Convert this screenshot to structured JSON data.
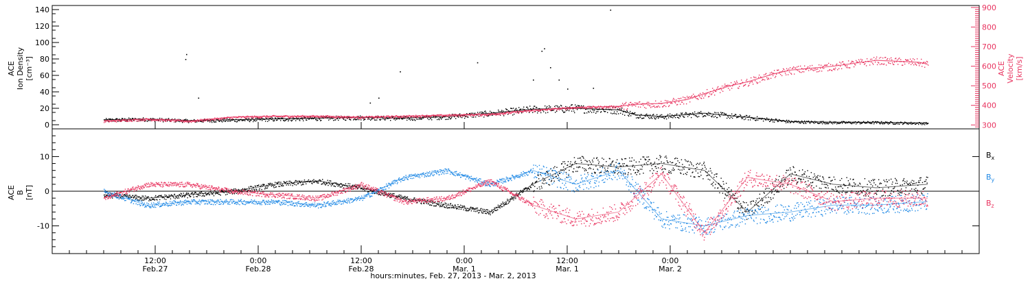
{
  "chart_data": [
    {
      "type": "scatter",
      "panel": "top",
      "ylabel_left": [
        "ACE",
        "Ion Density",
        "[cm⁻³]"
      ],
      "ylabel_right": [
        "ACE",
        "Velocity",
        "[km/s]"
      ],
      "ylim_left": [
        -5,
        145
      ],
      "ylim_right": [
        280,
        910
      ],
      "yticks_left": [
        0,
        20,
        40,
        60,
        80,
        100,
        120,
        140
      ],
      "yticks_right": [
        300,
        400,
        500,
        600,
        700,
        800,
        900
      ],
      "grid": false,
      "colors": {
        "density": "#000000",
        "velocity": "#e8335f"
      },
      "series": [
        {
          "axis": "left",
          "color": "#000000",
          "x_hours": [
            0,
            5,
            10,
            15,
            20,
            25,
            30,
            35,
            40,
            45,
            50,
            55,
            60,
            62,
            65,
            70,
            75,
            80,
            85,
            90,
            96
          ],
          "values": [
            6,
            7,
            5,
            6,
            7,
            8,
            9,
            8,
            10,
            14,
            19,
            20,
            18,
            12,
            10,
            14,
            9,
            4,
            3,
            3,
            2
          ]
        },
        {
          "axis": "right",
          "color": "#e8335f",
          "x_hours": [
            0,
            5,
            10,
            15,
            20,
            25,
            30,
            35,
            40,
            45,
            50,
            55,
            60,
            62,
            65,
            68,
            70,
            73,
            75,
            78,
            80,
            85,
            90,
            95,
            96
          ],
          "values": [
            320,
            330,
            320,
            340,
            345,
            345,
            340,
            345,
            350,
            355,
            375,
            390,
            395,
            405,
            410,
            430,
            460,
            500,
            520,
            560,
            580,
            600,
            630,
            620,
            610
          ]
        }
      ]
    },
    {
      "type": "scatter",
      "panel": "bottom",
      "ylabel": [
        "ACE",
        "B",
        "[nT]"
      ],
      "ylim": [
        -18,
        18
      ],
      "yticks": [
        -10,
        0,
        10
      ],
      "zero_line": true,
      "grid": false,
      "legend": [
        "Bx",
        "By",
        "Bz"
      ],
      "legend_placement": "right",
      "series": [
        {
          "name": "Bx",
          "color": "#000000",
          "x_hours": [
            0,
            5,
            10,
            15,
            20,
            25,
            30,
            35,
            40,
            45,
            50,
            55,
            60,
            65,
            70,
            75,
            80,
            85,
            90,
            96
          ],
          "values": [
            -1,
            -2,
            -1,
            0,
            2,
            3,
            1,
            -2,
            -4,
            -6,
            2,
            8,
            7,
            8,
            6,
            -6,
            5,
            2,
            1,
            2
          ]
        },
        {
          "name": "By",
          "color": "#1e88e5",
          "x_hours": [
            0,
            5,
            10,
            15,
            20,
            25,
            30,
            35,
            40,
            45,
            50,
            55,
            60,
            65,
            70,
            75,
            80,
            85,
            90,
            96
          ],
          "values": [
            0,
            -4,
            -3,
            -3,
            -3,
            -4,
            -2,
            4,
            6,
            2,
            6,
            2,
            6,
            -8,
            -10,
            -7,
            -6,
            -4,
            -4,
            -3
          ]
        },
        {
          "name": "Bz",
          "color": "#e8335f",
          "x_hours": [
            0,
            5,
            10,
            15,
            20,
            25,
            30,
            35,
            40,
            45,
            50,
            55,
            60,
            65,
            70,
            75,
            80,
            85,
            90,
            96
          ],
          "values": [
            -2,
            2,
            2,
            0,
            -1,
            -2,
            2,
            -3,
            -2,
            3,
            -4,
            -8,
            -6,
            5,
            -12,
            4,
            2,
            -3,
            -2,
            -2
          ]
        }
      ]
    }
  ],
  "x_axis": {
    "range_hours": [
      -6,
      102
    ],
    "ticks": [
      {
        "h": 6,
        "line1": "12:00",
        "line2": "Feb.27"
      },
      {
        "h": 18,
        "line1": "0:00",
        "line2": "Feb.28"
      },
      {
        "h": 30,
        "line1": "12:00",
        "line2": "Feb.28"
      },
      {
        "h": 42,
        "line1": "0:00",
        "line2": "Mar. 1"
      },
      {
        "h": 54,
        "line1": "12:00",
        "line2": "Mar. 1"
      },
      {
        "h": 66,
        "line1": "0:00",
        "line2": "Mar. 2"
      }
    ],
    "xlabel": "hours:minutes, Feb. 27, 2013 - Mar. 2, 2013"
  },
  "legend_labels": {
    "bx": {
      "main": "B",
      "sub": "x"
    },
    "by": {
      "main": "B",
      "sub": "y"
    },
    "bz": {
      "main": "B",
      "sub": "z"
    }
  }
}
